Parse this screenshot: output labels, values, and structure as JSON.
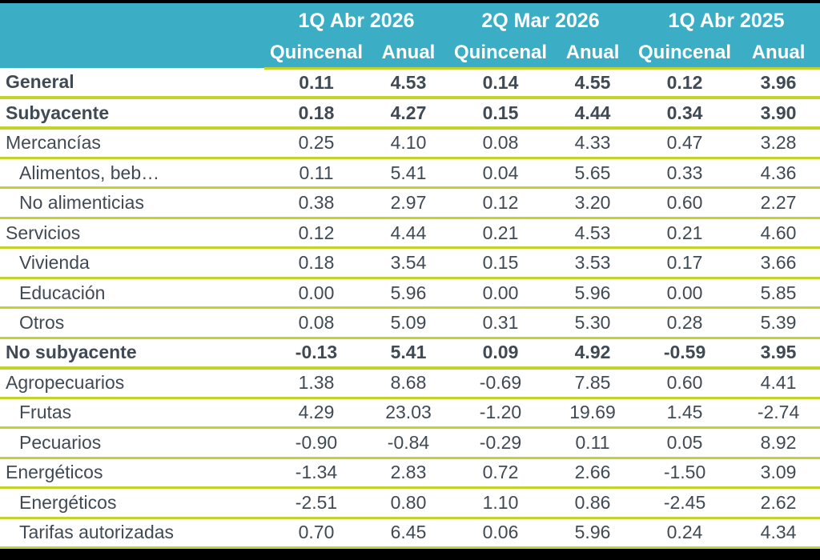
{
  "chart_data": {
    "type": "table",
    "column_groups": [
      "1Q Abr 2026",
      "2Q Mar 2026",
      "1Q Abr 2025"
    ],
    "sub_headers": [
      "Quincenal",
      "Anual",
      "Quincenal",
      "Anual",
      "Quincenal",
      "Anual"
    ],
    "rows": [
      {
        "label": "General",
        "bold": true,
        "indent": false,
        "values": [
          "0.11",
          "4.53",
          "0.14",
          "4.55",
          "0.12",
          "3.96"
        ]
      },
      {
        "label": "Subyacente",
        "bold": true,
        "indent": false,
        "values": [
          "0.18",
          "4.27",
          "0.15",
          "4.44",
          "0.34",
          "3.90"
        ]
      },
      {
        "label": "Mercancías",
        "bold": false,
        "indent": false,
        "values": [
          "0.25",
          "4.10",
          "0.08",
          "4.33",
          "0.47",
          "3.28"
        ]
      },
      {
        "label": "Alimentos, beb…",
        "bold": false,
        "indent": true,
        "values": [
          "0.11",
          "5.41",
          "0.04",
          "5.65",
          "0.33",
          "4.36"
        ]
      },
      {
        "label": "No alimenticias",
        "bold": false,
        "indent": true,
        "values": [
          "0.38",
          "2.97",
          "0.12",
          "3.20",
          "0.60",
          "2.27"
        ]
      },
      {
        "label": "Servicios",
        "bold": false,
        "indent": false,
        "values": [
          "0.12",
          "4.44",
          "0.21",
          "4.53",
          "0.21",
          "4.60"
        ]
      },
      {
        "label": "Vivienda",
        "bold": false,
        "indent": true,
        "values": [
          "0.18",
          "3.54",
          "0.15",
          "3.53",
          "0.17",
          "3.66"
        ]
      },
      {
        "label": "Educación",
        "bold": false,
        "indent": true,
        "values": [
          "0.00",
          "5.96",
          "0.00",
          "5.96",
          "0.00",
          "5.85"
        ]
      },
      {
        "label": "Otros",
        "bold": false,
        "indent": true,
        "values": [
          "0.08",
          "5.09",
          "0.31",
          "5.30",
          "0.28",
          "5.39"
        ]
      },
      {
        "label": "No subyacente",
        "bold": true,
        "indent": false,
        "values": [
          "-0.13",
          "5.41",
          "0.09",
          "4.92",
          "-0.59",
          "3.95"
        ]
      },
      {
        "label": "Agropecuarios",
        "bold": false,
        "indent": false,
        "values": [
          "1.38",
          "8.68",
          "-0.69",
          "7.85",
          "0.60",
          "4.41"
        ]
      },
      {
        "label": "Frutas",
        "bold": false,
        "indent": true,
        "values": [
          "4.29",
          "23.03",
          "-1.20",
          "19.69",
          "1.45",
          "-2.74"
        ]
      },
      {
        "label": "Pecuarios",
        "bold": false,
        "indent": true,
        "values": [
          "-0.90",
          "-0.84",
          "-0.29",
          "0.11",
          "0.05",
          "8.92"
        ]
      },
      {
        "label": "Energéticos",
        "bold": false,
        "indent": false,
        "values": [
          "-1.34",
          "2.83",
          "0.72",
          "2.66",
          "-1.50",
          "3.09"
        ]
      },
      {
        "label": "Energéticos",
        "bold": false,
        "indent": true,
        "values": [
          "-2.51",
          "0.80",
          "1.10",
          "0.86",
          "-2.45",
          "2.62"
        ]
      },
      {
        "label": "Tarifas autorizadas",
        "bold": false,
        "indent": true,
        "values": [
          "0.70",
          "6.45",
          "0.06",
          "5.96",
          "0.24",
          "4.34"
        ]
      }
    ]
  },
  "colors": {
    "header_bg": "#3BAEC5",
    "row_line": "#C3D32B",
    "text": "#3F4A55",
    "header_text": "#FFFFFF",
    "frame_bar": "#000000"
  }
}
